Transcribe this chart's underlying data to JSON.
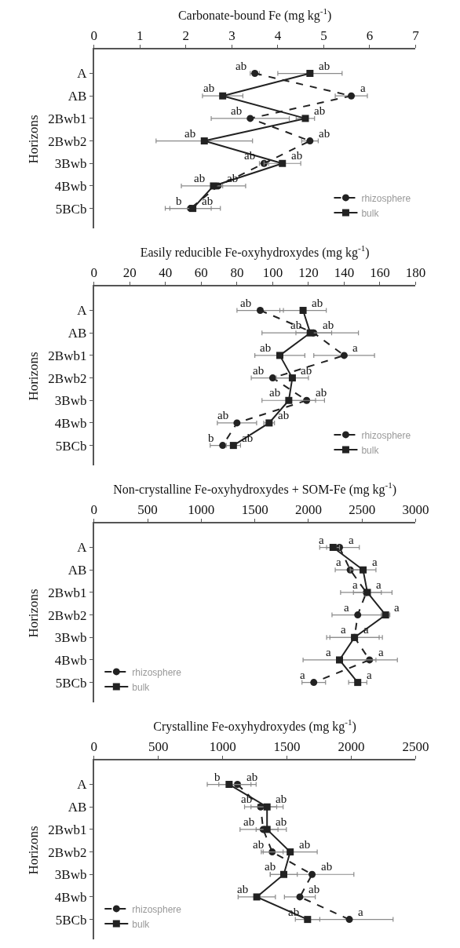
{
  "chart_data": [
    {
      "type": "line",
      "orientation": "horizontal",
      "xlabel": "Carbonate-bound Fe (mg kg$^{-1}$)",
      "ylabel": "Horizons",
      "categories": [
        "A",
        "AB",
        "2Bwb1",
        "2Bwb2",
        "3Bwb",
        "4Bwb",
        "5BCb"
      ],
      "xlim": [
        0,
        7
      ],
      "xticks": [
        0,
        1,
        2,
        3,
        4,
        5,
        6,
        7
      ],
      "legend": "bottom right",
      "series": [
        {
          "name": "rhizosphere",
          "color": "#222222",
          "marker": "circle",
          "line_style": "dashed",
          "values": [
            3.5,
            5.6,
            3.4,
            4.7,
            3.7,
            2.7,
            2.1
          ],
          "errors": [
            0.1,
            0.35,
            0.85,
            0.18,
            0.1,
            0.1,
            0.45
          ],
          "value_labels": [
            "ab",
            "a",
            "ab",
            "ab",
            "ab",
            "ab",
            "b"
          ]
        },
        {
          "name": "bulk",
          "color": "#222222",
          "marker": "square",
          "line_style": "solid",
          "values": [
            4.7,
            2.8,
            4.6,
            2.4,
            4.1,
            2.6,
            2.15
          ],
          "errors": [
            0.7,
            0.44,
            0.2,
            1.05,
            0.4,
            0.7,
            0.6
          ],
          "value_labels": [
            "ab",
            "ab",
            "ab",
            "ab",
            "ab",
            "ab",
            "ab"
          ]
        }
      ]
    },
    {
      "type": "line",
      "orientation": "horizontal",
      "xlabel": "Easily reducible Fe-oxyhydroxydes (mg kg$^{-1}$)",
      "ylabel": "Horizons",
      "categories": [
        "A",
        "AB",
        "2Bwb1",
        "2Bwb2",
        "3Bwb",
        "4Bwb",
        "5BCb"
      ],
      "xlim": [
        0,
        180
      ],
      "xticks": [
        0,
        20,
        40,
        60,
        80,
        100,
        120,
        140,
        160,
        180
      ],
      "legend": "bottom right",
      "series": [
        {
          "name": "rhizosphere",
          "color": "#222222",
          "marker": "circle",
          "line_style": "dashed",
          "values": [
            93,
            123,
            140,
            100,
            119,
            80,
            72
          ],
          "errors": [
            13,
            10,
            17,
            12,
            10,
            11,
            7
          ],
          "value_labels": [
            "ab",
            "ab",
            "a",
            "ab",
            "ab",
            "ab",
            "b"
          ]
        },
        {
          "name": "bulk",
          "color": "#222222",
          "marker": "square",
          "line_style": "solid",
          "values": [
            117,
            121,
            104,
            111,
            109,
            98,
            78
          ],
          "errors": [
            13,
            27,
            14,
            9,
            15,
            3,
            4
          ],
          "value_labels": [
            "ab",
            "ab",
            "ab",
            "ab",
            "ab",
            "ab",
            "ab"
          ]
        }
      ]
    },
    {
      "type": "line",
      "orientation": "horizontal",
      "xlabel": "Non-crystalline Fe-oxyhydroxydes + SOM-Fe (mg kg$^{-1}$)",
      "ylabel": "Horizons",
      "categories": [
        "A",
        "AB",
        "2Bwb1",
        "2Bwb2",
        "3Bwb",
        "4Bwb",
        "5BCb"
      ],
      "xlim": [
        0,
        3000
      ],
      "xticks": [
        0,
        500,
        1000,
        1500,
        2000,
        2500,
        3000
      ],
      "legend": "bottom left",
      "series": [
        {
          "name": "rhizosphere",
          "color": "#222222",
          "marker": "circle",
          "line_style": "dashed",
          "values": [
            2290,
            2390,
            2540,
            2460,
            2430,
            2570,
            2050
          ],
          "errors": [
            185,
            140,
            240,
            240,
            260,
            260,
            110
          ],
          "value_labels": [
            "a",
            "a",
            "a",
            "a",
            "a",
            "a",
            "a"
          ]
        },
        {
          "name": "bulk",
          "color": "#222222",
          "marker": "square",
          "line_style": "solid",
          "values": [
            2230,
            2510,
            2550,
            2720,
            2430,
            2290,
            2460
          ],
          "errors": [
            60,
            120,
            130,
            40,
            230,
            340,
            85
          ],
          "value_labels": [
            "a",
            "a",
            "a",
            "a",
            "a",
            "a",
            "a"
          ]
        }
      ]
    },
    {
      "type": "line",
      "orientation": "horizontal",
      "xlabel": "Crystalline Fe-oxyhydroxydes (mg kg$^{-1}$)",
      "ylabel": "Horizons",
      "categories": [
        "A",
        "AB",
        "2Bwb1",
        "2Bwb2",
        "3Bwb",
        "4Bwb",
        "5BCb"
      ],
      "xlim": [
        0,
        2500
      ],
      "xticks": [
        0,
        500,
        1000,
        1500,
        2000,
        2500
      ],
      "legend": "bottom left",
      "series": [
        {
          "name": "rhizosphere",
          "color": "#222222",
          "marker": "circle",
          "line_style": "dashed",
          "values": [
            1115,
            1295,
            1315,
            1385,
            1695,
            1600,
            1985
          ],
          "errors": [
            145,
            125,
            180,
            85,
            325,
            120,
            340
          ],
          "value_labels": [
            "ab",
            "ab",
            "ab",
            "ab",
            "ab",
            "ab",
            "a"
          ]
        },
        {
          "name": "bulk",
          "color": "#222222",
          "marker": "square",
          "line_style": "solid",
          "values": [
            1050,
            1345,
            1345,
            1525,
            1475,
            1265,
            1660
          ],
          "errors": [
            170,
            125,
            85,
            210,
            105,
            145,
            95
          ],
          "value_labels": [
            "b",
            "ab",
            "ab",
            "ab",
            "ab",
            "ab",
            "ab"
          ]
        }
      ]
    }
  ]
}
